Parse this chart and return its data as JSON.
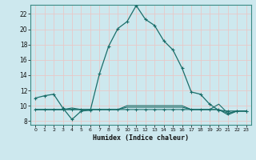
{
  "xlabel": "Humidex (Indice chaleur)",
  "bg_color": "#cde8ee",
  "grid_color": "#e8c8c8",
  "line_color": "#1a6e6a",
  "xlim": [
    -0.5,
    23.5
  ],
  "ylim": [
    7.5,
    23.2
  ],
  "xticks": [
    0,
    1,
    2,
    3,
    4,
    5,
    6,
    7,
    8,
    9,
    10,
    11,
    12,
    13,
    14,
    15,
    16,
    17,
    18,
    19,
    20,
    21,
    22,
    23
  ],
  "yticks": [
    8,
    10,
    12,
    14,
    16,
    18,
    20,
    22
  ],
  "main_curve_x": [
    0,
    1,
    2,
    3,
    4,
    5,
    6,
    7,
    8,
    9,
    10,
    11,
    12,
    13,
    14,
    15,
    16,
    17,
    18,
    19,
    20,
    21,
    22,
    23
  ],
  "main_curve_y": [
    11.0,
    11.3,
    11.5,
    9.7,
    8.2,
    9.3,
    9.4,
    14.2,
    17.8,
    20.1,
    21.0,
    23.1,
    21.3,
    20.5,
    18.5,
    17.3,
    14.9,
    11.8,
    11.5,
    10.2,
    9.4,
    9.3,
    9.3,
    9.3
  ],
  "flat_curves": [
    {
      "y": [
        9.5,
        9.5,
        9.5,
        9.5,
        9.5,
        9.5,
        9.5,
        9.5,
        9.5,
        9.5,
        9.5,
        9.5,
        9.5,
        9.5,
        9.5,
        9.5,
        9.5,
        9.5,
        9.5,
        9.5,
        9.5,
        9.0,
        9.3,
        9.3
      ],
      "marker": true
    },
    {
      "y": [
        9.5,
        9.5,
        9.5,
        9.5,
        9.5,
        9.5,
        9.5,
        9.5,
        9.5,
        9.5,
        9.8,
        9.8,
        9.8,
        9.8,
        9.8,
        9.8,
        9.8,
        9.5,
        9.5,
        9.5,
        9.5,
        8.8,
        9.3,
        9.3
      ],
      "marker": false
    },
    {
      "y": [
        9.5,
        9.5,
        9.5,
        9.5,
        9.7,
        9.5,
        9.5,
        9.5,
        9.5,
        9.5,
        10.0,
        10.0,
        10.0,
        10.0,
        10.0,
        10.0,
        10.0,
        9.5,
        9.5,
        9.5,
        10.2,
        9.0,
        9.3,
        9.3
      ],
      "marker": false
    }
  ]
}
